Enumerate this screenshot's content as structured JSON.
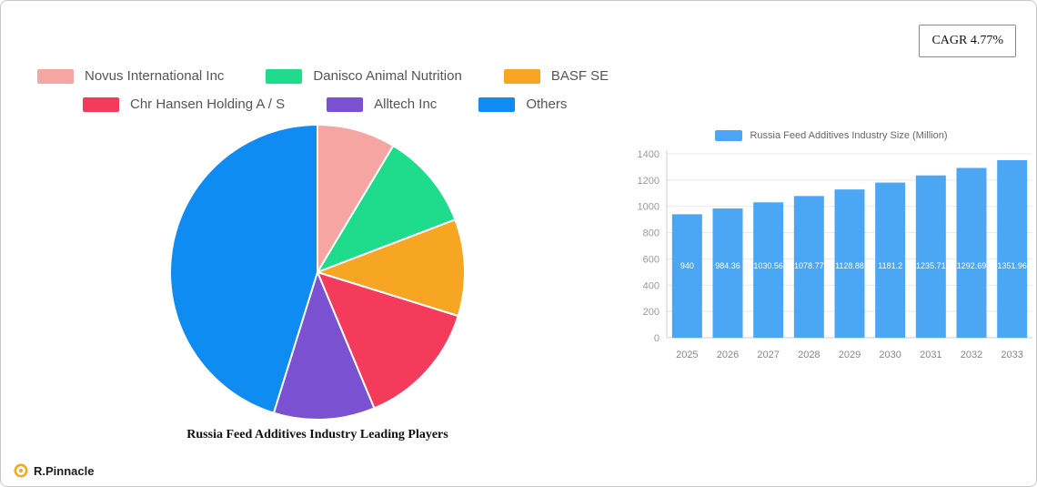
{
  "header": {
    "cagr_label": "CAGR 4.77%"
  },
  "brand": {
    "name": "R.Pinnacle",
    "icon_color": "#F5A623"
  },
  "chart_data": [
    {
      "type": "pie",
      "title": "Russia Feed Additives Industry Leading Players",
      "labels": [
        "Novus International Inc",
        "Danisco Animal Nutrition",
        "BASF SE",
        "Chr  Hansen Holding A / S",
        "Alltech Inc",
        "Others"
      ],
      "values": [
        8.6,
        10.6,
        10.6,
        13.9,
        11.1,
        45.2
      ],
      "colors": [
        "#F5A6A3",
        "#1EDC8C",
        "#F6A623",
        "#F43B5C",
        "#7A52D1",
        "#0E8CF1"
      ],
      "legend_position": "top",
      "start_angle": 0,
      "direction": "clockwise"
    },
    {
      "type": "bar",
      "legend": "Russia Feed Additives Industry Size (Million)",
      "categories": [
        "2025",
        "2026",
        "2027",
        "2028",
        "2029",
        "2030",
        "2031",
        "2032",
        "2033"
      ],
      "values": [
        940,
        984.36,
        1030.56,
        1078.77,
        1128.88,
        1181.2,
        1235.71,
        1292.69,
        1351.96
      ],
      "value_labels": [
        "940",
        "984.36",
        "1030.56",
        "1078.77",
        "1128.88",
        "1181.2",
        "1235.71",
        "1292.69",
        "1351.96"
      ],
      "ylim": [
        0,
        1400
      ],
      "yticks": [
        0,
        200,
        400,
        600,
        800,
        1000,
        1200,
        1400
      ],
      "bar_color": "#4BA6F3",
      "grid": true,
      "legend_position": "top"
    }
  ]
}
